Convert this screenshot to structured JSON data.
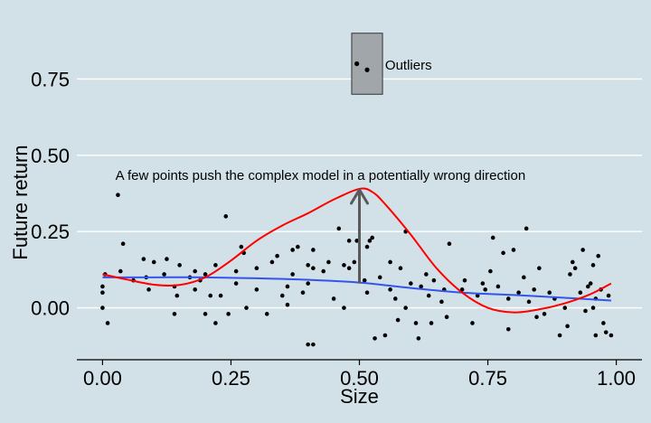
{
  "chart_data": {
    "type": "scatter",
    "xlabel": "Size",
    "ylabel": "Future return",
    "xlim": [
      -0.05,
      1.05
    ],
    "ylim": [
      -0.17,
      0.92
    ],
    "xticks": [
      0.0,
      0.25,
      0.5,
      0.75,
      1.0
    ],
    "xtick_labels": [
      "0.00",
      "0.25",
      "0.50",
      "0.75",
      "1.00"
    ],
    "yticks": [
      0.0,
      0.25,
      0.5,
      0.75
    ],
    "ytick_labels": [
      "0.00",
      "0.25",
      "0.50",
      "0.75"
    ],
    "grid": "horizontal",
    "colors": {
      "background": "#d2e1e7",
      "grid": "#ffffff",
      "points": "#000000",
      "complex_model": "#ff0000",
      "simple_model": "#3355ee",
      "arrow": "#5a5a5a",
      "outlier_box": "#a0a6aa"
    },
    "points": [
      [
        0.0,
        0.05
      ],
      [
        0.0,
        0.07
      ],
      [
        0.0,
        0.0
      ],
      [
        0.005,
        0.11
      ],
      [
        0.01,
        -0.05
      ],
      [
        0.03,
        0.37
      ],
      [
        0.035,
        0.12
      ],
      [
        0.04,
        0.21
      ],
      [
        0.08,
        0.16
      ],
      [
        0.085,
        0.1
      ],
      [
        0.09,
        0.06
      ],
      [
        0.1,
        0.15
      ],
      [
        0.12,
        0.11
      ],
      [
        0.125,
        0.16
      ],
      [
        0.14,
        0.07
      ],
      [
        0.145,
        0.04
      ],
      [
        0.14,
        -0.02
      ],
      [
        0.15,
        0.14
      ],
      [
        0.17,
        0.1
      ],
      [
        0.18,
        0.06
      ],
      [
        0.19,
        0.09
      ],
      [
        0.2,
        0.11
      ],
      [
        0.2,
        -0.02
      ],
      [
        0.21,
        0.04
      ],
      [
        0.22,
        0.14
      ],
      [
        0.22,
        -0.05
      ],
      [
        0.23,
        0.04
      ],
      [
        0.24,
        0.3
      ],
      [
        0.245,
        -0.02
      ],
      [
        0.26,
        0.12
      ],
      [
        0.27,
        0.2
      ],
      [
        0.275,
        0.18
      ],
      [
        0.28,
        0.0
      ],
      [
        0.3,
        0.13
      ],
      [
        0.32,
        -0.02
      ],
      [
        0.33,
        0.15
      ],
      [
        0.34,
        0.17
      ],
      [
        0.35,
        0.04
      ],
      [
        0.36,
        0.01
      ],
      [
        0.37,
        0.11
      ],
      [
        0.37,
        0.19
      ],
      [
        0.38,
        0.2
      ],
      [
        0.39,
        0.05
      ],
      [
        0.4,
        0.14
      ],
      [
        0.41,
        0.19
      ],
      [
        0.41,
        0.13
      ],
      [
        0.4,
        0.08
      ],
      [
        0.4,
        -0.12
      ],
      [
        0.41,
        -0.12
      ],
      [
        0.43,
        0.12
      ],
      [
        0.45,
        0.03
      ],
      [
        0.46,
        0.26
      ],
      [
        0.47,
        0.0
      ],
      [
        0.47,
        0.14
      ],
      [
        0.48,
        0.22
      ],
      [
        0.49,
        0.15
      ],
      [
        0.495,
        0.22
      ],
      [
        0.515,
        0.05
      ],
      [
        0.515,
        0.2
      ],
      [
        0.52,
        0.22
      ],
      [
        0.525,
        0.23
      ],
      [
        0.53,
        -0.1
      ],
      [
        0.54,
        0.1
      ],
      [
        0.55,
        -0.09
      ],
      [
        0.56,
        0.15
      ],
      [
        0.56,
        0.06
      ],
      [
        0.57,
        0.03
      ],
      [
        0.575,
        -0.04
      ],
      [
        0.58,
        0.13
      ],
      [
        0.59,
        0.25
      ],
      [
        0.6,
        0.08
      ],
      [
        0.61,
        -0.05
      ],
      [
        0.615,
        -0.1
      ],
      [
        0.62,
        0.07
      ],
      [
        0.63,
        0.11
      ],
      [
        0.635,
        0.04
      ],
      [
        0.64,
        -0.05
      ],
      [
        0.645,
        0.09
      ],
      [
        0.66,
        0.02
      ],
      [
        0.665,
        0.06
      ],
      [
        0.67,
        -0.03
      ],
      [
        0.675,
        0.21
      ],
      [
        0.7,
        0.06
      ],
      [
        0.705,
        0.09
      ],
      [
        0.72,
        -0.05
      ],
      [
        0.73,
        0.04
      ],
      [
        0.74,
        0.08
      ],
      [
        0.745,
        0.06
      ],
      [
        0.755,
        0.12
      ],
      [
        0.76,
        0.23
      ],
      [
        0.77,
        0.07
      ],
      [
        0.78,
        0.18
      ],
      [
        0.79,
        0.03
      ],
      [
        0.79,
        -0.07
      ],
      [
        0.8,
        0.19
      ],
      [
        0.81,
        0.05
      ],
      [
        0.82,
        0.1
      ],
      [
        0.825,
        0.26
      ],
      [
        0.83,
        0.02
      ],
      [
        0.84,
        0.06
      ],
      [
        0.845,
        -0.03
      ],
      [
        0.85,
        0.13
      ],
      [
        0.86,
        -0.02
      ],
      [
        0.87,
        0.05
      ],
      [
        0.88,
        0.03
      ],
      [
        0.89,
        -0.09
      ],
      [
        0.9,
        0.0
      ],
      [
        0.905,
        -0.06
      ],
      [
        0.91,
        0.11
      ],
      [
        0.915,
        0.15
      ],
      [
        0.92,
        0.13
      ],
      [
        0.93,
        0.05
      ],
      [
        0.935,
        0.19
      ],
      [
        0.94,
        -0.01
      ],
      [
        0.945,
        0.07
      ],
      [
        0.95,
        0.08
      ],
      [
        0.955,
        0.14
      ],
      [
        0.96,
        -0.09
      ],
      [
        0.965,
        0.17
      ],
      [
        0.97,
        0.06
      ],
      [
        0.975,
        -0.05
      ],
      [
        0.98,
        -0.08
      ],
      [
        0.985,
        0.04
      ],
      [
        0.99,
        -0.09
      ],
      [
        0.96,
        0.03
      ],
      [
        0.955,
        0.0
      ],
      [
        0.59,
        0.0
      ],
      [
        0.51,
        0.09
      ],
      [
        0.48,
        0.13
      ],
      [
        0.44,
        0.15
      ],
      [
        0.36,
        0.07
      ],
      [
        0.3,
        0.06
      ],
      [
        0.26,
        0.08
      ],
      [
        0.18,
        0.12
      ],
      [
        0.06,
        0.09
      ]
    ],
    "outliers": [
      [
        0.495,
        0.8
      ],
      [
        0.515,
        0.78
      ]
    ],
    "complex_model_curve": [
      [
        0.0,
        0.11
      ],
      [
        0.05,
        0.092
      ],
      [
        0.1,
        0.076
      ],
      [
        0.15,
        0.075
      ],
      [
        0.2,
        0.1
      ],
      [
        0.25,
        0.155
      ],
      [
        0.3,
        0.22
      ],
      [
        0.35,
        0.27
      ],
      [
        0.4,
        0.31
      ],
      [
        0.45,
        0.355
      ],
      [
        0.5,
        0.39
      ],
      [
        0.525,
        0.38
      ],
      [
        0.55,
        0.34
      ],
      [
        0.6,
        0.24
      ],
      [
        0.65,
        0.13
      ],
      [
        0.7,
        0.05
      ],
      [
        0.75,
        0.0
      ],
      [
        0.8,
        -0.015
      ],
      [
        0.85,
        -0.005
      ],
      [
        0.9,
        0.015
      ],
      [
        0.95,
        0.045
      ],
      [
        0.99,
        0.08
      ]
    ],
    "simple_model_curve": [
      [
        0.0,
        0.1
      ],
      [
        0.1,
        0.1
      ],
      [
        0.2,
        0.1
      ],
      [
        0.3,
        0.097
      ],
      [
        0.4,
        0.092
      ],
      [
        0.5,
        0.083
      ],
      [
        0.6,
        0.065
      ],
      [
        0.7,
        0.05
      ],
      [
        0.8,
        0.042
      ],
      [
        0.9,
        0.033
      ],
      [
        0.99,
        0.024
      ]
    ],
    "arrow": {
      "x": 0.5,
      "y_from": 0.08,
      "y_to": 0.39
    },
    "outlier_box": {
      "x0": 0.485,
      "x1": 0.545,
      "y0": 0.7,
      "y1": 0.9
    },
    "annotations": {
      "outliers_label": "Outliers",
      "outliers_label_at": [
        0.55,
        0.795
      ],
      "complex_note": "A few points push the complex model in a potentially wrong direction",
      "complex_note_at": [
        0.025,
        0.42
      ]
    }
  }
}
